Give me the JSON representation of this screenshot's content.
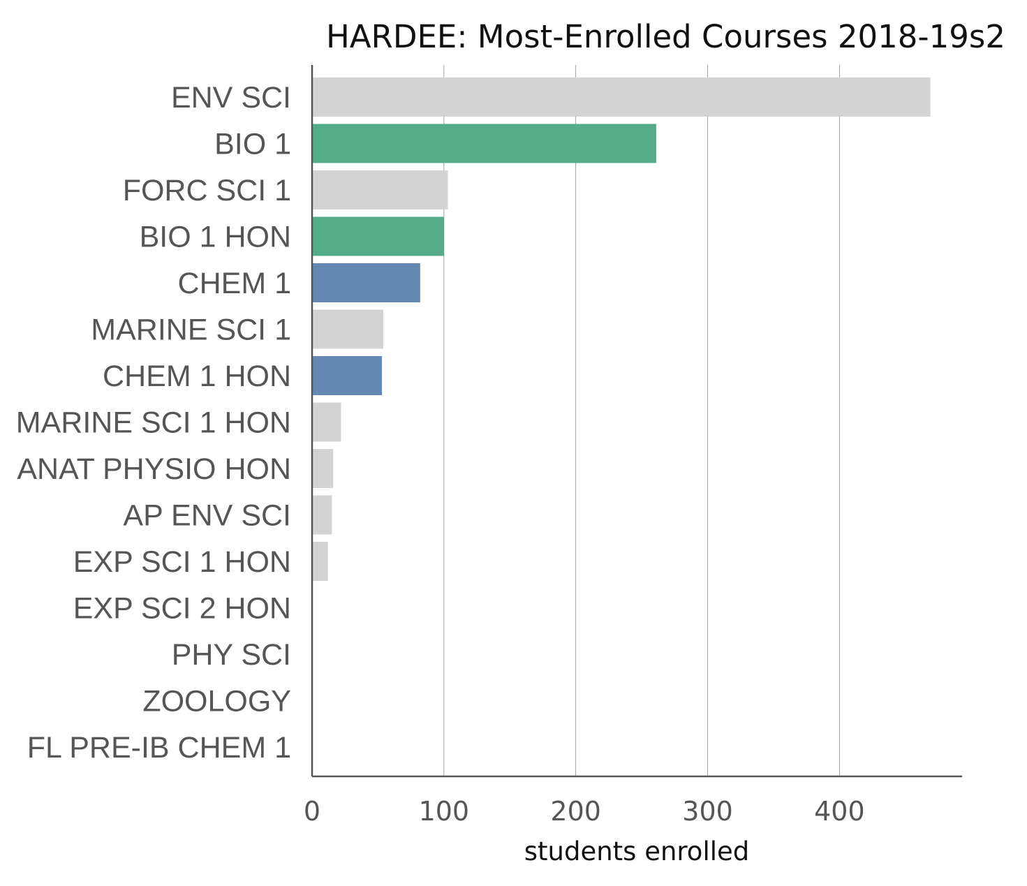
{
  "chart_data": {
    "type": "bar",
    "orientation": "horizontal",
    "title": "HARDEE: Most-Enrolled Courses 2018-19s2",
    "xlabel": "students enrolled",
    "ylabel": "",
    "xlim": [
      0,
      493
    ],
    "xticks": [
      0,
      100,
      200,
      300,
      400
    ],
    "grid": "vertical",
    "categories": [
      "ENV SCI",
      "BIO 1",
      "FORC SCI 1",
      "BIO 1 HON",
      "CHEM 1",
      "MARINE SCI 1",
      "CHEM 1 HON",
      "MARINE SCI 1 HON",
      "ANAT PHYSIO HON",
      "AP ENV SCI",
      "EXP SCI 1 HON",
      "EXP SCI 2 HON",
      "PHY SCI",
      "ZOOLOGY",
      "FL PRE-IB CHEM 1"
    ],
    "values": [
      469,
      261,
      103,
      100,
      82,
      54,
      53,
      22,
      16,
      15,
      12,
      0,
      0,
      0,
      0
    ],
    "bar_colors": [
      "#d3d3d3",
      "#55ac89",
      "#d3d3d3",
      "#55ac89",
      "#6388b4",
      "#d3d3d3",
      "#6388b4",
      "#d3d3d3",
      "#d3d3d3",
      "#d3d3d3",
      "#d3d3d3",
      "#d3d3d3",
      "#d3d3d3",
      "#d3d3d3",
      "#d3d3d3"
    ]
  }
}
